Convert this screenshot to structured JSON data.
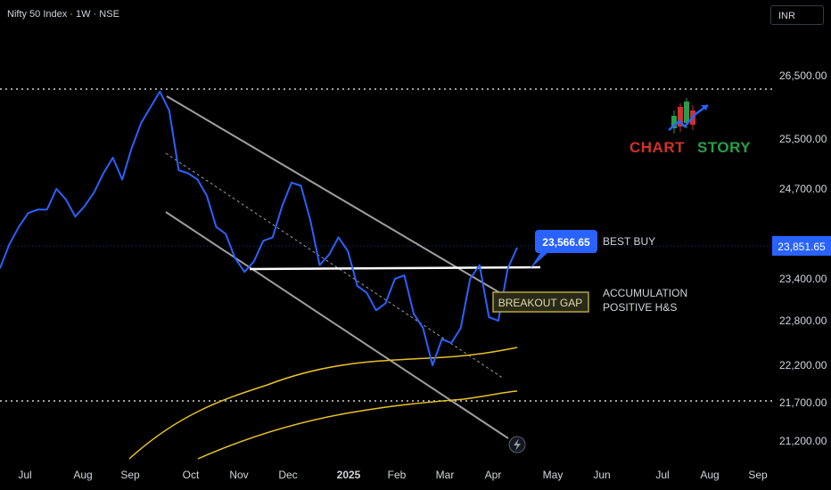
{
  "header": {
    "symbol": "Nifty 50 Index · 1W · NSE",
    "currency": "INR"
  },
  "logo": {
    "part1": "CHART",
    "part2": "STORY",
    "color1": "#d0312d",
    "color2": "#2a9d4b"
  },
  "colors": {
    "price": "#2962ff",
    "ma": "#e6c229",
    "channel": "#9e9e9e",
    "label_bg": "#2962ff",
    "gap_box": "#b5a642"
  },
  "chart_data": {
    "type": "line",
    "x_labels": [
      "Jul",
      "Aug",
      "Sep",
      "Oct",
      "Nov",
      "Dec",
      "2025",
      "Feb",
      "Mar",
      "Apr",
      "May",
      "Jun",
      "Jul",
      "Aug",
      "Sep"
    ],
    "y_ticks": [
      "26,500.00",
      "25,500.00",
      "24,700.00",
      "23,400.00",
      "22,800.00",
      "22,200.00",
      "21,700.00",
      "21,200.00"
    ],
    "y_tick_values": [
      26500,
      25500,
      24700,
      23400,
      22800,
      22200,
      21700,
      21200
    ],
    "last_price_label": "23,851.65",
    "series": [
      {
        "values": [
          23550,
          23900,
          24150,
          24350,
          24400,
          24400,
          24700,
          24550,
          24300,
          24450,
          24650,
          24950,
          25200,
          24850,
          25350,
          25750,
          26000,
          26250,
          25950,
          25000,
          24950,
          24850,
          24600,
          24150,
          24050,
          23700,
          23500,
          23650,
          23950,
          24000,
          24450,
          24800,
          24750,
          24250,
          23600,
          23750,
          24000,
          23800,
          23300,
          23200,
          22950,
          23050,
          23400,
          23450,
          22900,
          22700,
          22200,
          22550,
          22500,
          22700,
          23400,
          23600,
          22850,
          22800,
          23550,
          23851.65
        ]
      }
    ],
    "annotations": {
      "best_buy_price": "23,566.65",
      "best_buy_text": "BEST BUY",
      "gap_text": "BREAKOUT GAP",
      "accumulation_line1": "ACCUMULATION",
      "accumulation_line2": "POSITIVE H&S"
    }
  }
}
